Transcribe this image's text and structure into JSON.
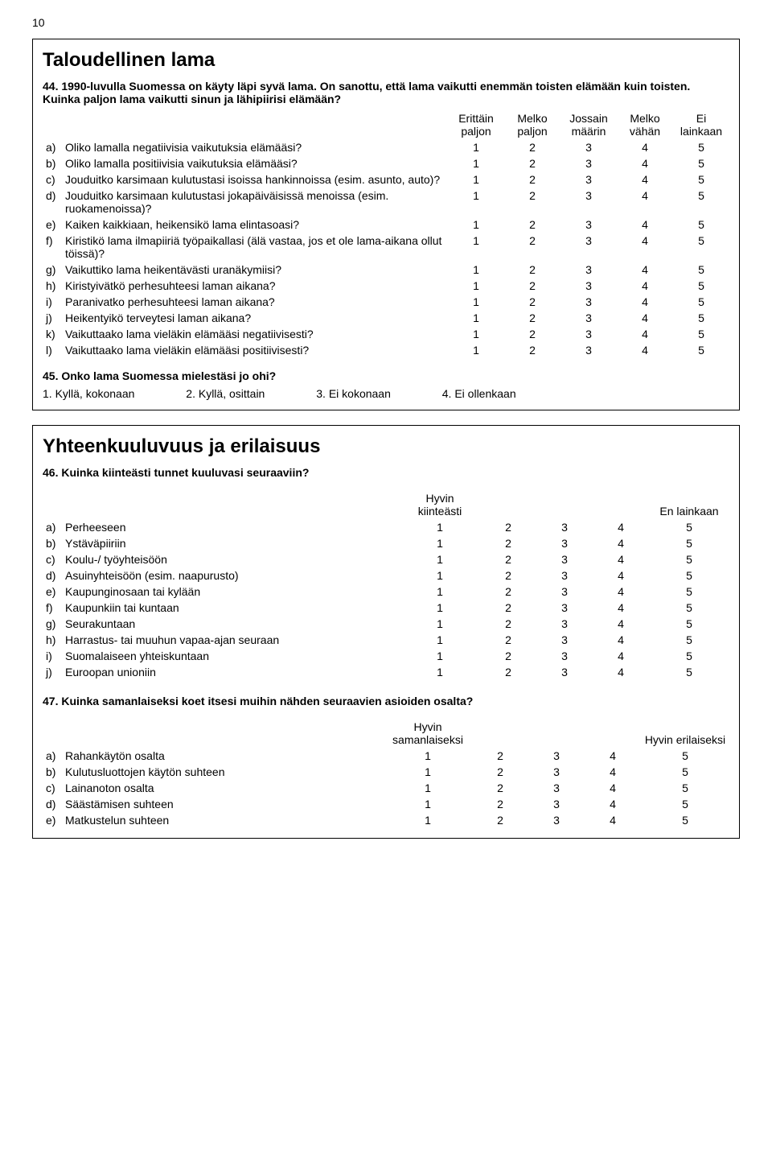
{
  "pageNumber": "10",
  "box1": {
    "title": "Taloudellinen lama",
    "q44": {
      "intro": "44. 1990-luvulla Suomessa on käyty läpi syvä lama. On sanottu, että lama vaikutti enemmän toisten elämään kuin toisten. Kuinka paljon lama vaikutti sinun ja lähipiirisi elämään?",
      "headers": [
        "Erittäin paljon",
        "Melko paljon",
        "Jossain määrin",
        "Melko vähän",
        "Ei lainkaan"
      ],
      "rows": [
        {
          "letter": "a)",
          "text": "Oliko lamalla negatiivisia vaikutuksia elämääsi?",
          "vals": [
            "1",
            "2",
            "3",
            "4",
            "5"
          ]
        },
        {
          "letter": "b)",
          "text": "Oliko lamalla positiivisia vaikutuksia elämääsi?",
          "vals": [
            "1",
            "2",
            "3",
            "4",
            "5"
          ]
        },
        {
          "letter": "c)",
          "text": "Jouduitko karsimaan kulutustasi isoissa hankinnoissa (esim. asunto, auto)?",
          "vals": [
            "1",
            "2",
            "3",
            "4",
            "5"
          ]
        },
        {
          "letter": "d)",
          "text": "Jouduitko karsimaan kulutustasi jokapäiväisissä menoissa (esim. ruokamenoissa)?",
          "vals": [
            "1",
            "2",
            "3",
            "4",
            "5"
          ]
        },
        {
          "letter": "e)",
          "text": "Kaiken kaikkiaan, heikensikö lama elintasoasi?",
          "vals": [
            "1",
            "2",
            "3",
            "4",
            "5"
          ]
        },
        {
          "letter": "f)",
          "text": "Kiristikö lama ilmapiiriä työpaikallasi (älä vastaa, jos et ole lama-aikana ollut töissä)?",
          "vals": [
            "1",
            "2",
            "3",
            "4",
            "5"
          ]
        },
        {
          "letter": "g)",
          "text": "Vaikuttiko lama heikentävästi uranäkymiisi?",
          "vals": [
            "1",
            "2",
            "3",
            "4",
            "5"
          ]
        },
        {
          "letter": "h)",
          "text": "Kiristyivätkö perhesuhteesi laman aikana?",
          "vals": [
            "1",
            "2",
            "3",
            "4",
            "5"
          ]
        },
        {
          "letter": "i)",
          "text": "Paranivatko perhesuhteesi laman aikana?",
          "vals": [
            "1",
            "2",
            "3",
            "4",
            "5"
          ]
        },
        {
          "letter": "j)",
          "text": "Heikentyikö terveytesi laman aikana?",
          "vals": [
            "1",
            "2",
            "3",
            "4",
            "5"
          ]
        },
        {
          "letter": "k)",
          "text": "Vaikuttaako lama vieläkin elämääsi negatiivisesti?",
          "vals": [
            "1",
            "2",
            "3",
            "4",
            "5"
          ]
        },
        {
          "letter": "l)",
          "text": "Vaikuttaako lama vieläkin elämääsi positiivisesti?",
          "vals": [
            "1",
            "2",
            "3",
            "4",
            "5"
          ]
        }
      ]
    },
    "q45": {
      "intro": "45. Onko lama Suomessa mielestäsi jo ohi?",
      "answers": [
        "1. Kyllä, kokonaan",
        "2. Kyllä, osittain",
        "3. Ei kokonaan",
        "4. Ei ollenkaan"
      ]
    }
  },
  "box2": {
    "title": "Yhteenkuuluvuus ja erilaisuus",
    "q46": {
      "intro": "46. Kuinka kiinteästi tunnet kuuluvasi seuraaviin?",
      "headerLeft": "Hyvin kiinteästi",
      "headerRight": "En lainkaan",
      "rows": [
        {
          "letter": "a)",
          "text": "Perheeseen",
          "vals": [
            "1",
            "2",
            "3",
            "4",
            "5"
          ]
        },
        {
          "letter": "b)",
          "text": "Ystäväpiiriin",
          "vals": [
            "1",
            "2",
            "3",
            "4",
            "5"
          ]
        },
        {
          "letter": "c)",
          "text": "Koulu-/ työyhteisöön",
          "vals": [
            "1",
            "2",
            "3",
            "4",
            "5"
          ]
        },
        {
          "letter": "d)",
          "text": "Asuinyhteisöön (esim. naapurusto)",
          "vals": [
            "1",
            "2",
            "3",
            "4",
            "5"
          ]
        },
        {
          "letter": "e)",
          "text": "Kaupunginosaan tai kylään",
          "vals": [
            "1",
            "2",
            "3",
            "4",
            "5"
          ]
        },
        {
          "letter": "f)",
          "text": "Kaupunkiin tai kuntaan",
          "vals": [
            "1",
            "2",
            "3",
            "4",
            "5"
          ]
        },
        {
          "letter": "g)",
          "text": "Seurakuntaan",
          "vals": [
            "1",
            "2",
            "3",
            "4",
            "5"
          ]
        },
        {
          "letter": "h)",
          "text": "Harrastus- tai muuhun vapaa-ajan seuraan",
          "vals": [
            "1",
            "2",
            "3",
            "4",
            "5"
          ]
        },
        {
          "letter": "i)",
          "text": "Suomalaiseen yhteiskuntaan",
          "vals": [
            "1",
            "2",
            "3",
            "4",
            "5"
          ]
        },
        {
          "letter": "j)",
          "text": "Euroopan unioniin",
          "vals": [
            "1",
            "2",
            "3",
            "4",
            "5"
          ]
        }
      ]
    },
    "q47": {
      "intro": "47. Kuinka samanlaiseksi koet itsesi muihin nähden seuraavien asioiden osalta?",
      "headerLeft": "Hyvin samanlaiseksi",
      "headerRight": "Hyvin erilaiseksi",
      "rows": [
        {
          "letter": "a)",
          "text": "Rahankäytön osalta",
          "vals": [
            "1",
            "2",
            "3",
            "4",
            "5"
          ]
        },
        {
          "letter": "b)",
          "text": "Kulutusluottojen käytön suhteen",
          "vals": [
            "1",
            "2",
            "3",
            "4",
            "5"
          ]
        },
        {
          "letter": "c)",
          "text": "Lainanoton osalta",
          "vals": [
            "1",
            "2",
            "3",
            "4",
            "5"
          ]
        },
        {
          "letter": "d)",
          "text": "Säästämisen suhteen",
          "vals": [
            "1",
            "2",
            "3",
            "4",
            "5"
          ]
        },
        {
          "letter": "e)",
          "text": "Matkustelun suhteen",
          "vals": [
            "1",
            "2",
            "3",
            "4",
            "5"
          ]
        }
      ]
    }
  }
}
